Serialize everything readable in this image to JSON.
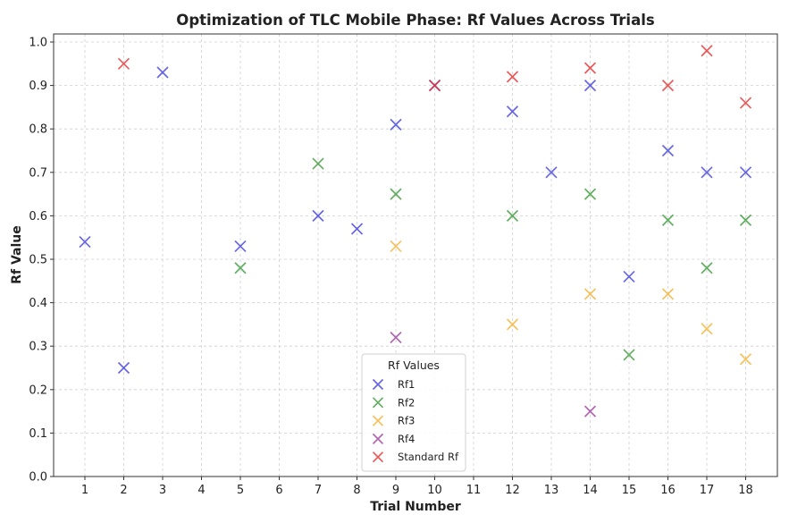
{
  "chart_data": {
    "type": "scatter",
    "title": "Optimization of TLC Mobile Phase: Rf Values Across Trials",
    "xlabel": "Trial Number",
    "ylabel": "Rf Value",
    "categories": [
      "1",
      "2",
      "3",
      "4",
      "5",
      "6",
      "7",
      "8",
      "9",
      "10",
      "11",
      "12",
      "13",
      "14",
      "15",
      "16",
      "17",
      "18"
    ],
    "ylim": [
      0,
      1.0
    ],
    "yticks": [
      "0.0",
      "0.1",
      "0.2",
      "0.3",
      "0.4",
      "0.5",
      "0.6",
      "0.7",
      "0.8",
      "0.9",
      "1.0"
    ],
    "grid": true,
    "legend": {
      "title": "Rf Values",
      "position": "lower-center"
    },
    "series": [
      {
        "name": "Rf1",
        "color": "#4040e0",
        "points": [
          [
            1,
            0.54
          ],
          [
            2,
            0.25
          ],
          [
            3,
            0.93
          ],
          [
            5,
            0.53
          ],
          [
            7,
            0.6
          ],
          [
            8,
            0.57
          ],
          [
            9,
            0.81
          ],
          [
            10,
            0.9
          ],
          [
            12,
            0.84
          ],
          [
            13,
            0.7
          ],
          [
            14,
            0.9
          ],
          [
            15,
            0.46
          ],
          [
            16,
            0.75
          ],
          [
            17,
            0.7
          ],
          [
            18,
            0.7
          ]
        ]
      },
      {
        "name": "Rf2",
        "color": "#3a9a3a",
        "points": [
          [
            5,
            0.48
          ],
          [
            7,
            0.72
          ],
          [
            9,
            0.65
          ],
          [
            12,
            0.6
          ],
          [
            14,
            0.65
          ],
          [
            15,
            0.28
          ],
          [
            16,
            0.59
          ],
          [
            17,
            0.48
          ],
          [
            18,
            0.59
          ]
        ]
      },
      {
        "name": "Rf3",
        "color": "#f5b335",
        "points": [
          [
            9,
            0.53
          ],
          [
            12,
            0.35
          ],
          [
            14,
            0.42
          ],
          [
            16,
            0.42
          ],
          [
            17,
            0.34
          ],
          [
            18,
            0.27
          ]
        ]
      },
      {
        "name": "Rf4",
        "color": "#a040a0",
        "points": [
          [
            9,
            0.32
          ],
          [
            14,
            0.15
          ]
        ]
      },
      {
        "name": "Standard Rf",
        "color": "#e83030",
        "points": [
          [
            2,
            0.95
          ],
          [
            10,
            0.9
          ],
          [
            12,
            0.92
          ],
          [
            14,
            0.94
          ],
          [
            16,
            0.9
          ],
          [
            17,
            0.98
          ],
          [
            18,
            0.86
          ]
        ]
      }
    ]
  }
}
